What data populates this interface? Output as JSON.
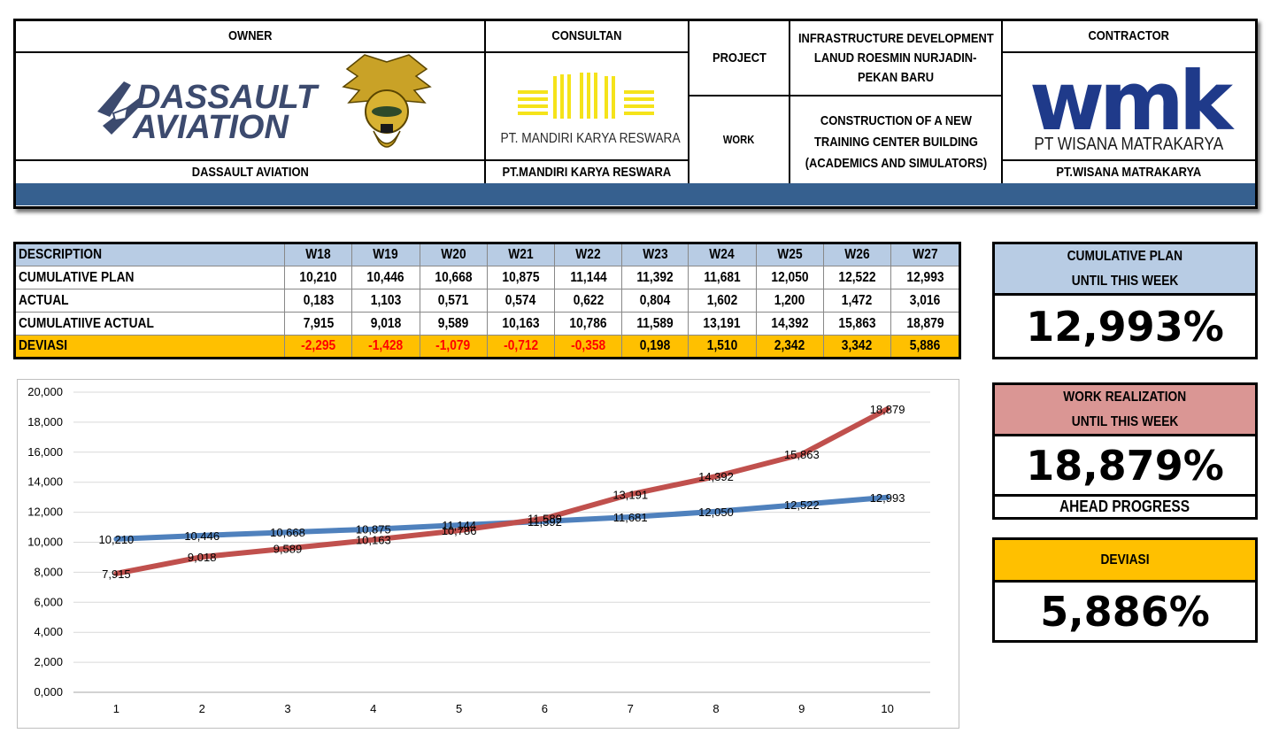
{
  "header": {
    "owner_label": "OWNER",
    "owner_logo_text_1": "DASSAULT",
    "owner_logo_text_2": "AVIATION",
    "owner_name": "DASSAULT AVIATION",
    "consultant_label": "CONSULTAN",
    "consultant_logo_text": "PT. MANDIRI KARYA RESWARA",
    "consultant_name": "PT.MANDIRI KARYA RESWARA",
    "project_label": "PROJECT",
    "project_value_1": "INFRASTRUCTURE DEVELOPMENT",
    "project_value_2": "LANUD ROESMIN NURJADIN-",
    "project_value_3": "PEKAN BARU",
    "work_label": "WORK",
    "work_value_1": "CONSTRUCTION OF A NEW",
    "work_value_2": "TRAINING CENTER BUILDING",
    "work_value_3": "(ACADEMICS AND SIMULATORS)",
    "contractor_label": "CONTRACTOR",
    "contractor_logo_text": "wmk",
    "contractor_logo_sub": "PT WISANA MATRAKARYA",
    "contractor_name": "PT.WISANA MATRAKARYA",
    "band_color": "#36608f"
  },
  "table": {
    "columns": [
      "DESCRIPTION",
      "W18",
      "W19",
      "W20",
      "W21",
      "W22",
      "W23",
      "W24",
      "W25",
      "W26",
      "W27"
    ],
    "rows": [
      {
        "label": "CUMULATIVE PLAN",
        "values": [
          "10,210",
          "10,446",
          "10,668",
          "10,875",
          "11,144",
          "11,392",
          "11,681",
          "12,050",
          "12,522",
          "12,993"
        ]
      },
      {
        "label": "ACTUAL",
        "values": [
          "0,183",
          "1,103",
          "0,571",
          "0,574",
          "0,622",
          "0,804",
          "1,602",
          "1,200",
          "1,472",
          "3,016"
        ]
      },
      {
        "label": "CUMULATIIVE ACTUAL",
        "values": [
          "7,915",
          "9,018",
          "9,589",
          "10,163",
          "10,786",
          "11,589",
          "13,191",
          "14,392",
          "15,863",
          "18,879"
        ]
      },
      {
        "label": "DEVIASI",
        "values": [
          "-2,295",
          "-1,428",
          "-1,079",
          "-0,712",
          "-0,358",
          "0,198",
          "1,510",
          "2,342",
          "3,342",
          "5,886"
        ]
      }
    ],
    "header_color": "#b8cce4",
    "deviation_color": "#ffc000",
    "negative_color": "#ff0000"
  },
  "summary": {
    "plan_title_1": "CUMULATIVE PLAN",
    "plan_title_2": "UNTIL THIS WEEK",
    "plan_value": "12,993%",
    "plan_color": "#b8cce4",
    "real_title_1": "WORK REALIZATION",
    "real_title_2": "UNTIL THIS WEEK",
    "real_value": "18,879%",
    "real_status": "AHEAD PROGRESS",
    "real_color": "#da9694",
    "dev_title": "DEVIASI",
    "dev_value": "5,886%",
    "dev_color": "#ffc000"
  },
  "chart_data": {
    "type": "line",
    "x": [
      1,
      2,
      3,
      4,
      5,
      6,
      7,
      8,
      9,
      10
    ],
    "ylim": [
      0,
      20
    ],
    "y_tick_step": 2,
    "y_tick_labels": [
      "0,000",
      "2,000",
      "4,000",
      "6,000",
      "8,000",
      "10,000",
      "12,000",
      "14,000",
      "16,000",
      "18,000",
      "20,000"
    ],
    "grid": true,
    "series": [
      {
        "color": "#4f81bd",
        "values": [
          10.21,
          10.446,
          10.668,
          10.875,
          11.144,
          11.392,
          11.681,
          12.05,
          12.522,
          12.993
        ],
        "labels": [
          "10,210",
          "10,446",
          "10,668",
          "10,875",
          "11,144",
          "11,392",
          "11,681",
          "12,050",
          "12,522",
          "12,993"
        ]
      },
      {
        "color": "#c0504d",
        "values": [
          7.915,
          9.018,
          9.589,
          10.163,
          10.786,
          11.589,
          13.191,
          14.392,
          15.863,
          18.879
        ],
        "labels": [
          "7,915",
          "9,018",
          "9,589",
          "10,163",
          "10,786",
          "11,589",
          "13,191",
          "14,392",
          "15,863",
          "18,879"
        ]
      }
    ]
  }
}
